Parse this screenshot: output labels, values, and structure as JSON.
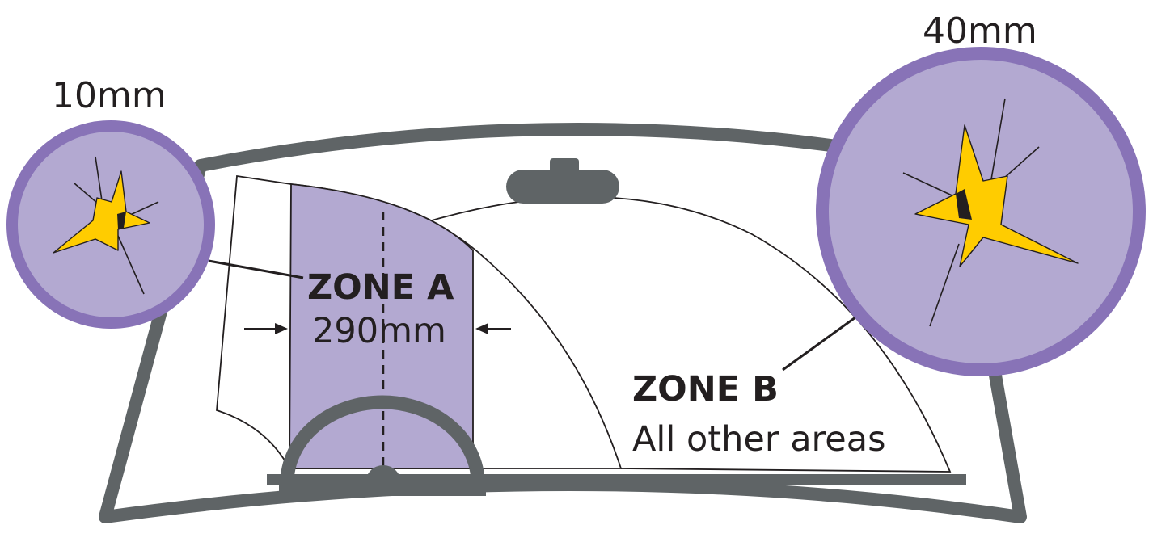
{
  "labels": {
    "small_chip_size": "10mm",
    "large_chip_size": "40mm",
    "zone_a_title": "ZONE A",
    "zone_a_width": "290mm",
    "zone_b_title": "ZONE B",
    "zone_b_desc": "All other areas"
  },
  "colors": {
    "frame": "#5f6466",
    "zone_a_fill": "#b3a9d1",
    "circle_fill": "#b3a9d1",
    "circle_border": "#8873b7",
    "chip_fill": "#ffcc00",
    "line": "#231f20",
    "background": "#ffffff"
  },
  "icons": {
    "windscreen": "windscreen-outline",
    "mirror": "rear-view-mirror-icon",
    "steering_wheel": "steering-wheel-icon",
    "small_chip": "crack-chip-icon",
    "large_chip": "crack-chip-icon"
  }
}
